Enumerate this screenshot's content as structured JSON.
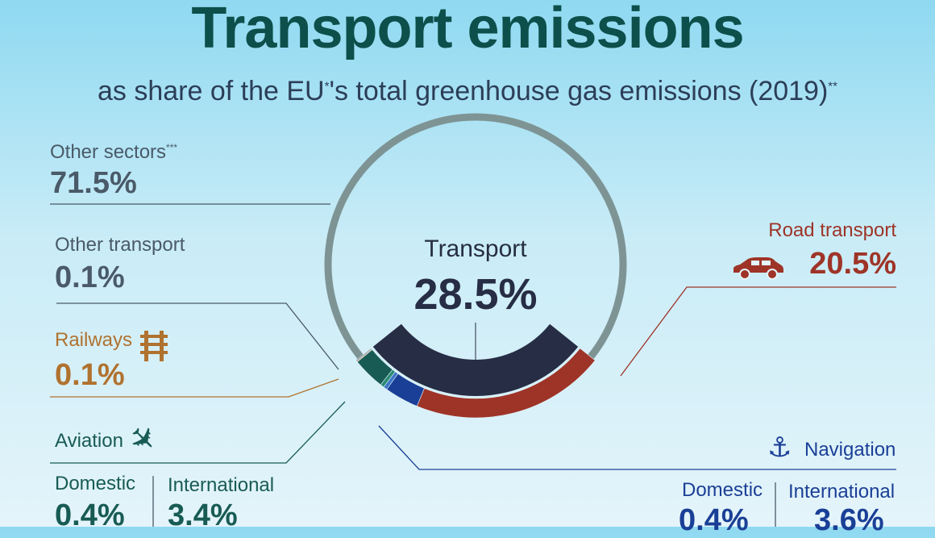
{
  "title": "Transport emissions",
  "subtitle": "as share of the EU",
  "subtitle_mark1": "*",
  "subtitle_rest": "'s total greenhouse gas emissions (2019)",
  "subtitle_mark2": "**",
  "colors": {
    "other_sectors": "#7e9494",
    "transport": "#262d44",
    "road": "#9e3428",
    "aviation": "#185b55",
    "navigation": "#1a3f96",
    "railways": "#b0722f",
    "other_transport": "#4e5d70"
  },
  "labels": {
    "other_sectors": "Other sectors",
    "other_sectors_mark": "***",
    "other_sectors_value": "71.5%",
    "other_transport": "Other transport",
    "other_transport_value": "0.1%",
    "railways": "Railways",
    "railways_value": "0.1%",
    "transport": "Transport",
    "transport_value": "28.5%",
    "road": "Road transport",
    "road_value": "20.5%",
    "aviation": "Aviation",
    "aviation_domestic": "Domestic",
    "aviation_domestic_value": "0.4%",
    "aviation_international": "International",
    "aviation_international_value": "3.4%",
    "navigation": "Navigation",
    "navigation_domestic": "Domestic",
    "navigation_domestic_value": "0.4%",
    "navigation_international": "International",
    "navigation_international_value": "3.6%"
  },
  "icons": {
    "railways": "railway-track-icon",
    "road": "car-icon",
    "aviation": "airplane-icon",
    "navigation": "anchor-icon"
  },
  "chart_data": {
    "type": "pie",
    "title": "Transport emissions",
    "outer_ring": [
      {
        "name": "Other sectors",
        "value": 71.5
      },
      {
        "name": "Transport",
        "value": 28.5
      }
    ],
    "transport_breakdown": [
      {
        "name": "Road transport",
        "value": 20.5
      },
      {
        "name": "Navigation - International",
        "value": 3.6
      },
      {
        "name": "Navigation - Domestic",
        "value": 0.4
      },
      {
        "name": "Aviation - Domestic",
        "value": 0.4
      },
      {
        "name": "Aviation - International",
        "value": 3.4
      },
      {
        "name": "Railways",
        "value": 0.1
      },
      {
        "name": "Other transport",
        "value": 0.1
      }
    ]
  }
}
